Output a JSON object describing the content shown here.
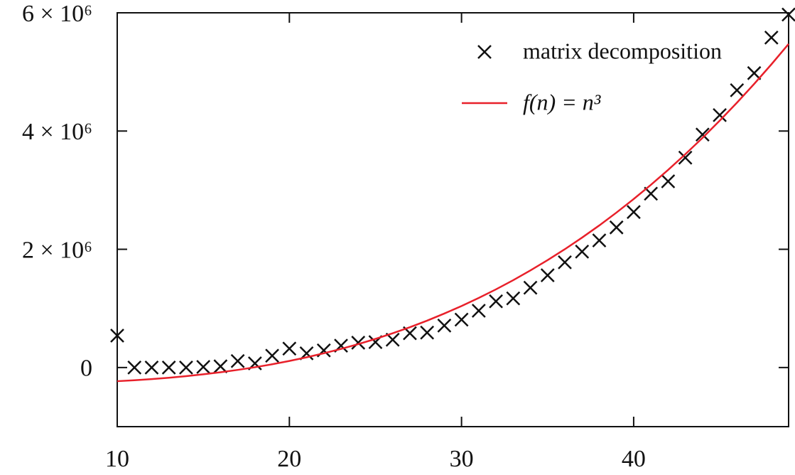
{
  "chart_data": {
    "type": "line",
    "xlim": [
      10,
      49
    ],
    "ylim": [
      -1000000,
      6000000
    ],
    "xticks": [
      10,
      20,
      30,
      40
    ],
    "yticks": [
      0,
      {
        "value": 2000000,
        "label": "2 × 10⁶"
      },
      {
        "value": 4000000,
        "label": "4 × 10⁶"
      },
      {
        "value": 6000000,
        "label": "6 × 10⁶"
      }
    ],
    "legend": "upper right",
    "series": [
      {
        "name": "matrix decomposition",
        "mode": "markers",
        "color": "#111111",
        "x": [
          10,
          11,
          12,
          13,
          14,
          15,
          16,
          17,
          18,
          19,
          20,
          21,
          22,
          23,
          24,
          25,
          26,
          27,
          28,
          29,
          30,
          31,
          32,
          33,
          34,
          35,
          36,
          37,
          38,
          39,
          40,
          41,
          42,
          43,
          44,
          45,
          46,
          47,
          48,
          49
        ],
        "values": [
          540000,
          0,
          0,
          0,
          0,
          10000,
          20000,
          110000,
          70000,
          200000,
          320000,
          240000,
          290000,
          370000,
          420000,
          430000,
          470000,
          580000,
          590000,
          710000,
          810000,
          960000,
          1120000,
          1170000,
          1350000,
          1560000,
          1780000,
          1960000,
          2150000,
          2370000,
          2630000,
          2940000,
          3150000,
          3550000,
          3940000,
          4270000,
          4690000,
          4980000,
          5580000,
          5970000
        ]
      },
      {
        "name": "f(n) = n³",
        "mode": "line",
        "color": "#e8202a",
        "x": [
          10,
          11,
          12,
          13,
          14,
          15,
          16,
          17,
          18,
          19,
          20,
          21,
          22,
          23,
          24,
          25,
          26,
          27,
          28,
          29,
          30,
          31,
          32,
          33,
          34,
          35,
          36,
          37,
          38,
          39,
          40,
          41,
          42,
          43,
          44,
          45,
          46,
          47,
          48,
          49
        ],
        "values": [
          -231000,
          -215000,
          -195000,
          -173000,
          -146000,
          -115000,
          -80000,
          -40000,
          5000,
          55000,
          111000,
          173000,
          241000,
          315000,
          396000,
          484000,
          579000,
          682000,
          793000,
          913000,
          1040000,
          1177000,
          1322000,
          1477000,
          1642000,
          1817000,
          2001000,
          2197000,
          2403000,
          2621000,
          2850000,
          3090000,
          3343000,
          3608000,
          3885000,
          4176000,
          4480000,
          4797000,
          5128000,
          5473000
        ]
      }
    ]
  }
}
